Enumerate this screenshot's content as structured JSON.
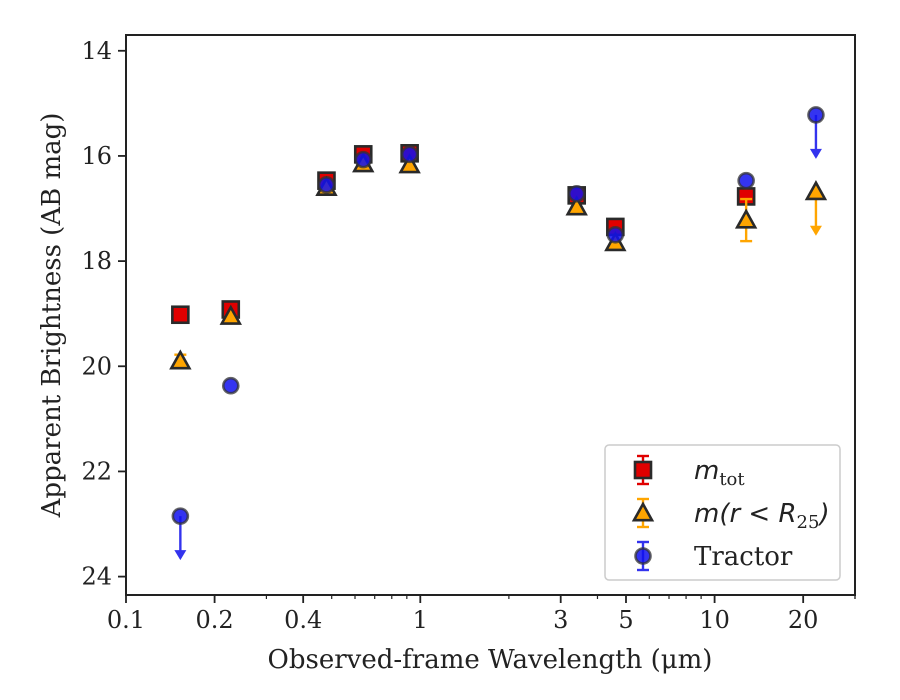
{
  "chart_data": {
    "type": "scatter",
    "xlabel": "Observed-frame Wavelength (μm)",
    "ylabel": "Apparent Brightness (AB mag)",
    "xscale": "log",
    "xlim": [
      0.1,
      30
    ],
    "ylim": [
      24.35,
      13.7
    ],
    "y_inverted": true,
    "x_ticks": [
      0.1,
      0.2,
      0.4,
      1,
      3,
      5,
      10,
      20
    ],
    "x_tick_labels": [
      "0.1",
      "0.2",
      "0.4",
      "1",
      "3",
      "5",
      "10",
      "20"
    ],
    "y_ticks": [
      14,
      16,
      18,
      20,
      22,
      24
    ],
    "y_tick_labels": [
      "14",
      "16",
      "18",
      "20",
      "22",
      "24"
    ],
    "grid": false,
    "legend_position": "lower-right",
    "series": [
      {
        "name": "m_tot",
        "legend_label": "m",
        "legend_sub": "tot",
        "marker": "square",
        "color": "#e00000",
        "error_color": "#e00000",
        "points": [
          {
            "x": 0.153,
            "y": 19.02
          },
          {
            "x": 0.227,
            "y": 18.92
          },
          {
            "x": 0.48,
            "y": 16.47
          },
          {
            "x": 0.64,
            "y": 15.97
          },
          {
            "x": 0.92,
            "y": 15.95
          },
          {
            "x": 3.4,
            "y": 16.75
          },
          {
            "x": 4.6,
            "y": 17.35
          },
          {
            "x": 12.8,
            "y": 16.77
          }
        ]
      },
      {
        "name": "m(r < R_25)",
        "legend_label": "m(r < R",
        "legend_sub": "25",
        "legend_tail": ")",
        "marker": "triangle",
        "color": "#ffa500",
        "error_color": "#ffa500",
        "points": [
          {
            "x": 0.153,
            "y": 19.9,
            "err": 0.12
          },
          {
            "x": 0.227,
            "y": 19.05
          },
          {
            "x": 0.48,
            "y": 16.6
          },
          {
            "x": 0.64,
            "y": 16.15
          },
          {
            "x": 0.92,
            "y": 16.17
          },
          {
            "x": 3.4,
            "y": 16.97
          },
          {
            "x": 4.6,
            "y": 17.65
          },
          {
            "x": 12.8,
            "y": 17.22,
            "err": 0.4
          },
          {
            "x": 22.1,
            "y": 16.68,
            "upper_limit": true
          }
        ]
      },
      {
        "name": "Tractor",
        "legend_label": "Tractor",
        "marker": "circle",
        "color": "#1010ee",
        "error_color": "#3333ee",
        "points": [
          {
            "x": 0.153,
            "y": 22.85,
            "upper_limit": true
          },
          {
            "x": 0.227,
            "y": 20.37
          },
          {
            "x": 0.48,
            "y": 16.55
          },
          {
            "x": 0.64,
            "y": 16.07
          },
          {
            "x": 0.92,
            "y": 15.97
          },
          {
            "x": 3.4,
            "y": 16.72
          },
          {
            "x": 4.6,
            "y": 17.5
          },
          {
            "x": 12.8,
            "y": 16.47
          },
          {
            "x": 22.1,
            "y": 15.22,
            "upper_limit": true
          }
        ]
      }
    ]
  }
}
